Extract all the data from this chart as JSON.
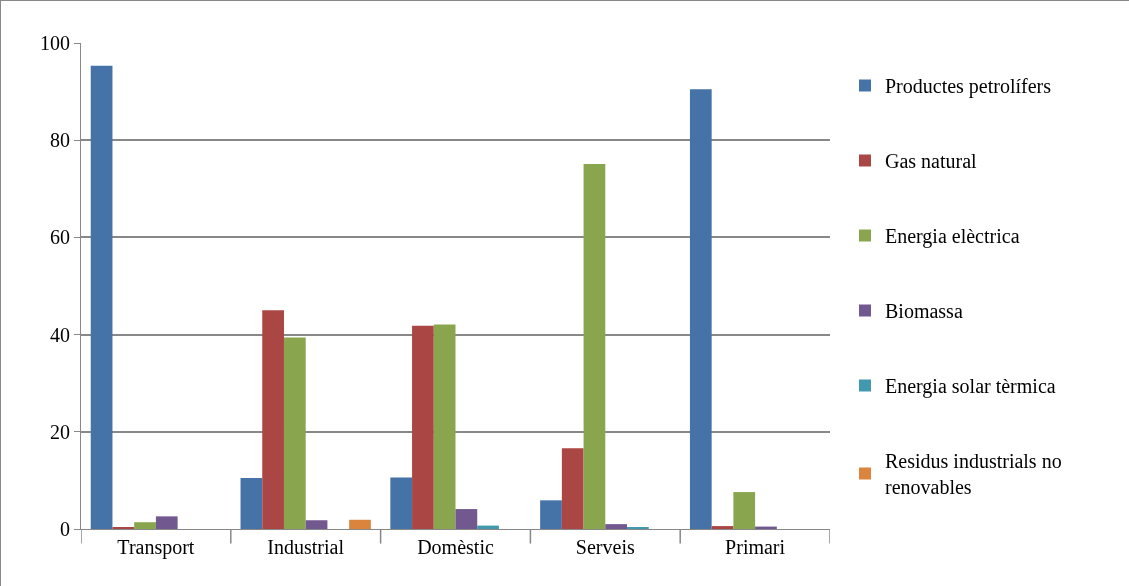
{
  "chart_data": {
    "type": "bar",
    "categories": [
      "Transport",
      "Industrial",
      "Domèstic",
      "Serveis",
      "Primari"
    ],
    "series": [
      {
        "name": "Productes petrolífers",
        "color": "#4572a7",
        "values": [
          95.3,
          10.5,
          10.6,
          5.9,
          90.5
        ]
      },
      {
        "name": "Gas natural",
        "color": "#aa4643",
        "values": [
          0.3,
          45,
          41.8,
          16.6,
          0.6
        ]
      },
      {
        "name": "Energia elèctrica",
        "color": "#89a54e",
        "values": [
          1.4,
          39.4,
          42.1,
          75.1,
          7.6
        ]
      },
      {
        "name": "Biomassa",
        "color": "#71588f",
        "values": [
          2.6,
          1.8,
          4.1,
          1.0,
          0.5
        ]
      },
      {
        "name": "Energia solar tèrmica",
        "color": "#4198af",
        "values": [
          null,
          null,
          0.7,
          0.3,
          null
        ]
      },
      {
        "name": "Residus industrials no renovables",
        "color": "#db843d",
        "values": [
          null,
          1.9,
          null,
          null,
          null
        ]
      }
    ],
    "ylim": [
      0,
      100
    ],
    "yticks": [
      0,
      20,
      40,
      60,
      80,
      100
    ],
    "grid": "y",
    "legend": "right"
  }
}
